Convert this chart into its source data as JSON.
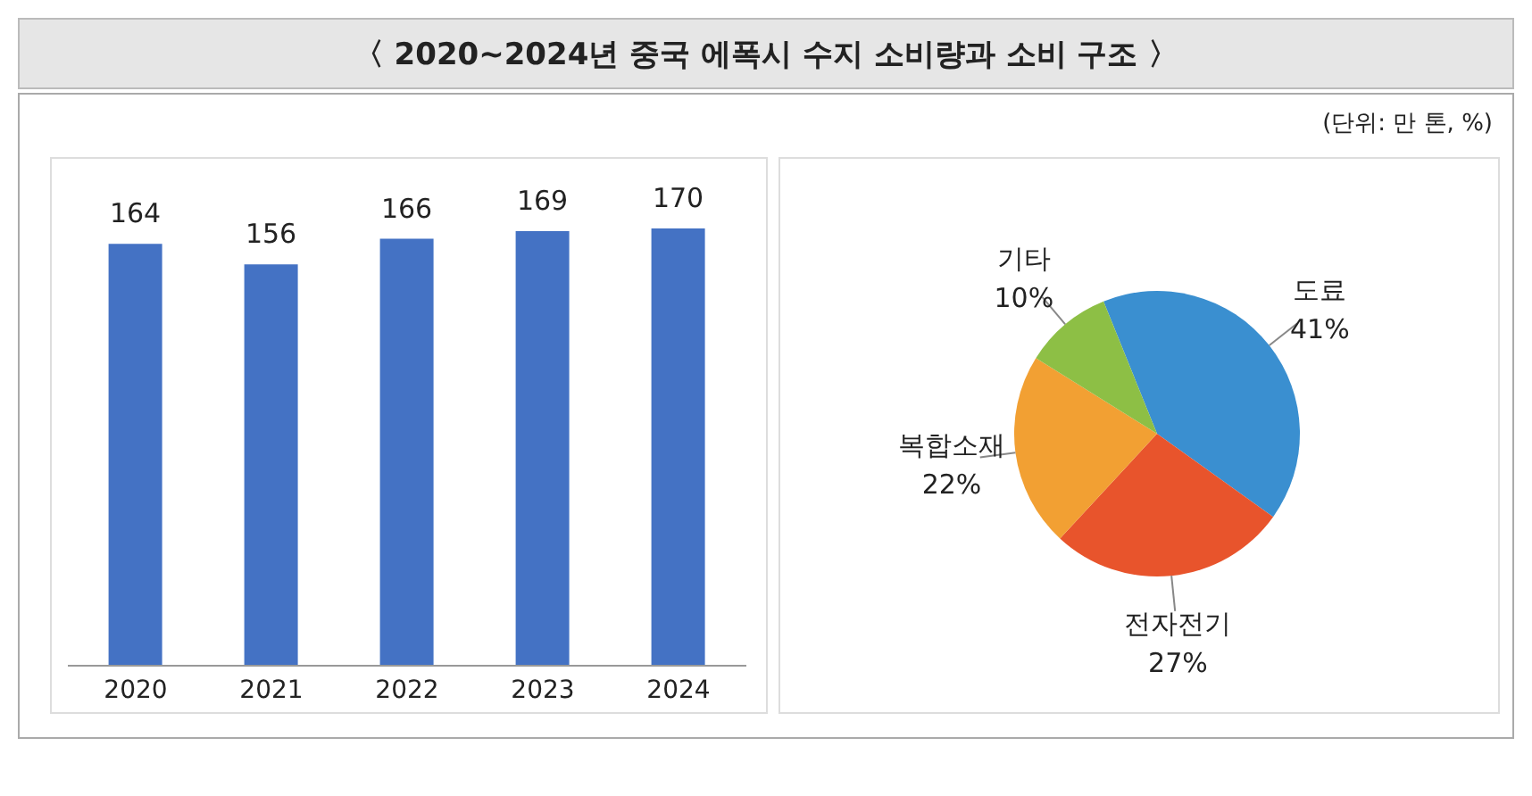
{
  "chart_data": [
    {
      "type": "bar",
      "title": "〈 2020~2024년 중국 에폭시 수지 소비량과 소비 구조 〉",
      "annotations": [
        "(단위: 만 톤, %)"
      ],
      "categories": [
        "2020",
        "2021",
        "2022",
        "2023",
        "2024"
      ],
      "values": [
        164,
        156,
        166,
        169,
        170
      ],
      "color": "#4472c4",
      "data_labels": true,
      "tick_labels": "x"
    },
    {
      "type": "pie",
      "categories": [
        "도료",
        "전자전기",
        "복합소재",
        "기타"
      ],
      "values": [
        41,
        27,
        22,
        10
      ],
      "colors": [
        "#3a8fd0",
        "#e8542c",
        "#f2a033",
        "#8dbf45"
      ],
      "value_labels": [
        "41%",
        "27%",
        "22%",
        "10%"
      ]
    }
  ]
}
